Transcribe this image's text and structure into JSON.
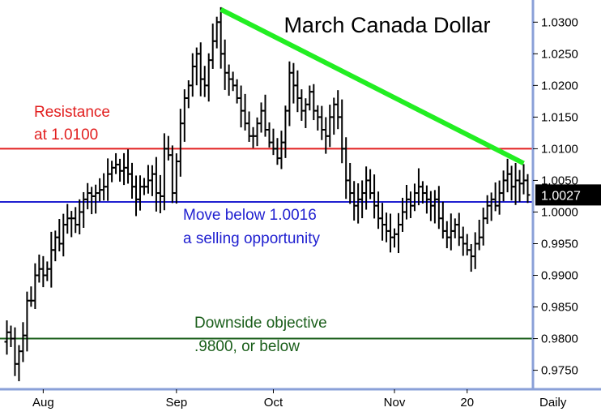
{
  "chart_data": {
    "type": "ohlc-bar",
    "title": "March Canada Dollar",
    "timeframe_label": "Daily",
    "ylim": [
      0.972,
      1.0335
    ],
    "y_ticks": [
      "1.0300",
      "1.0250",
      "1.0200",
      "1.0150",
      "1.0100",
      "1.0050",
      "1.0000",
      "0.9950",
      "0.9900",
      "0.9850",
      "0.9800",
      "0.9750"
    ],
    "x_labels": [
      {
        "label": "Aug",
        "index": 9
      },
      {
        "label": "Sep",
        "index": 42
      },
      {
        "label": "Oct",
        "index": 66
      },
      {
        "label": "Nov",
        "index": 96
      },
      {
        "label": "20",
        "index": 114
      }
    ],
    "last_price": {
      "label": "1.0027",
      "value": 1.0027
    },
    "horizontal_lines": [
      {
        "value": 1.01,
        "color": "#e21f1f"
      },
      {
        "value": 1.0016,
        "color": "#1f1fd0"
      },
      {
        "value": 0.98,
        "color": "#1a5e1a"
      }
    ],
    "trendline": {
      "start": {
        "index": 53,
        "value": 1.032
      },
      "end": {
        "index": 128,
        "value": 1.0077
      },
      "color": "#22ee22"
    },
    "annotations": [
      {
        "lines": [
          "Resistance",
          "at 1.0100"
        ],
        "color": "#e21f1f"
      },
      {
        "lines": [
          "Move below 1.0016",
          "a selling opportunity"
        ],
        "color": "#1f1fd0"
      },
      {
        "lines": [
          "Downside objective",
          ".9800, or below"
        ],
        "color": "#1a5e1a"
      }
    ],
    "closes": [
      0.981,
      0.98,
      0.976,
      0.978,
      0.9805,
      0.986,
      0.986,
      0.99,
      0.991,
      0.99,
      0.991,
      0.994,
      0.996,
      0.995,
      0.998,
      0.999,
      0.999,
      0.998,
      1.0,
      1.002,
      1.003,
      1.0025,
      1.003,
      1.0035,
      1.004,
      1.006,
      1.007,
      1.0075,
      1.0065,
      1.007,
      1.006,
      1.004,
      1.002,
      1.004,
      1.004,
      1.005,
      1.006,
      1.003,
      1.0025,
      1.01,
      1.009,
      1.003,
      1.008,
      1.014,
      1.018,
      1.02,
      1.023,
      1.025,
      1.021,
      1.02,
      1.024,
      1.027,
      1.03,
      1.025,
      1.022,
      1.021,
      1.02,
      1.018,
      1.016,
      1.014,
      1.012,
      1.012,
      1.014,
      1.016,
      1.013,
      1.011,
      1.01,
      1.0085,
      1.011,
      1.016,
      1.022,
      1.02,
      1.018,
      1.016,
      1.017,
      1.019,
      1.016,
      1.015,
      1.013,
      1.012,
      1.015,
      1.017,
      1.015,
      1.01,
      1.005,
      1.003,
      1.001,
      1.002,
      1.003,
      1.005,
      1.003,
      1.001,
      0.999,
      0.998,
      0.997,
      0.996,
      0.9965,
      0.998,
      1.0,
      1.002,
      1.001,
      1.003,
      1.004,
      1.003,
      1.002,
      1.001,
      1.002,
      0.999,
      0.997,
      0.996,
      0.997,
      0.998,
      0.996,
      0.995,
      0.994,
      0.993,
      0.995,
      0.996,
      0.999,
      1.001,
      1.002,
      1.001,
      1.003,
      1.005,
      1.006,
      1.004,
      1.005,
      1.0045,
      1.005,
      1.0027
    ]
  }
}
